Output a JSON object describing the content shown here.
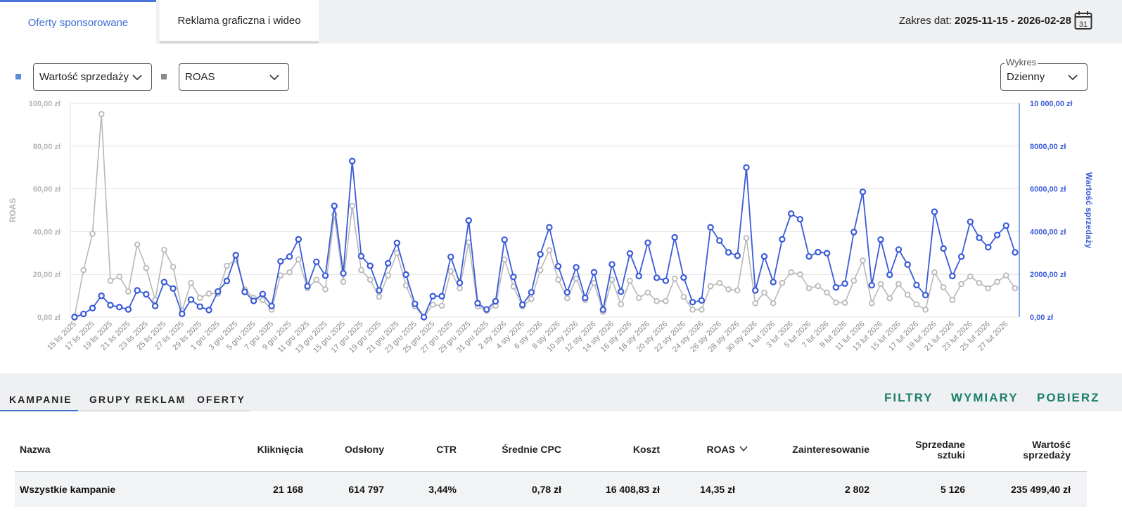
{
  "tabs": [
    {
      "label": "Oferty sponsorowane"
    },
    {
      "label": "Reklama graficzna i wideo"
    }
  ],
  "date_range": {
    "label": "Zakres dat:",
    "value": "2025-11-15 - 2026-02-28",
    "icon": "calendar-icon",
    "icon_text": "31"
  },
  "controls": {
    "primary_metric": "Wartość sprzedaży",
    "secondary_metric": "ROAS",
    "chart_mode_label": "Wykres",
    "chart_mode_value": "Dzienny",
    "primary_color": "#4a6bd6",
    "secondary_color": "#8a8a8a"
  },
  "chart_data": {
    "type": "line",
    "x": [
      "15 lis 2025",
      "16 lis 2025",
      "17 lis 2025",
      "18 lis 2025",
      "19 lis 2025",
      "20 lis 2025",
      "21 lis 2025",
      "22 lis 2025",
      "23 lis 2025",
      "24 lis 2025",
      "25 lis 2025",
      "26 lis 2025",
      "27 lis 2025",
      "28 lis 2025",
      "29 lis 2025",
      "30 lis 2025",
      "1 gru 2025",
      "2 gru 2025",
      "3 gru 2025",
      "4 gru 2025",
      "5 gru 2025",
      "6 gru 2025",
      "7 gru 2025",
      "8 gru 2025",
      "9 gru 2025",
      "10 gru 2025",
      "11 gru 2025",
      "12 gru 2025",
      "13 gru 2025",
      "14 gru 2025",
      "15 gru 2025",
      "16 gru 2025",
      "17 gru 2025",
      "18 gru 2025",
      "19 gru 2025",
      "20 gru 2025",
      "21 gru 2025",
      "22 gru 2025",
      "23 gru 2025",
      "24 gru 2025",
      "25 gru 2025",
      "26 gru 2025",
      "27 gru 2025",
      "28 gru 2025",
      "29 gru 2025",
      "30 gru 2025",
      "31 gru 2025",
      "1 sty 2026",
      "2 sty 2026",
      "3 sty 2026",
      "4 sty 2026",
      "5 sty 2026",
      "6 sty 2026",
      "7 sty 2026",
      "8 sty 2026",
      "9 sty 2026",
      "10 sty 2026",
      "11 sty 2026",
      "12 sty 2026",
      "13 sty 2026",
      "14 sty 2026",
      "15 sty 2026",
      "16 sty 2026",
      "17 sty 2026",
      "18 sty 2026",
      "19 sty 2026",
      "20 sty 2026",
      "21 sty 2026",
      "22 sty 2026",
      "23 sty 2026",
      "24 sty 2026",
      "25 sty 2026",
      "26 sty 2026",
      "27 sty 2026",
      "28 sty 2026",
      "29 sty 2026",
      "30 sty 2026",
      "31 sty 2026",
      "1 lut 2026",
      "2 lut 2026",
      "3 lut 2026",
      "4 lut 2026",
      "5 lut 2026",
      "6 lut 2026",
      "7 lut 2026",
      "8 lut 2026",
      "9 lut 2026",
      "10 lut 2026",
      "11 lut 2026",
      "12 lut 2026",
      "13 lut 2026",
      "14 lut 2026",
      "15 lut 2026",
      "16 lut 2026",
      "17 lut 2026",
      "18 lut 2026",
      "19 lut 2026",
      "20 lut 2026",
      "21 lut 2026",
      "22 lut 2026",
      "23 lut 2026",
      "24 lut 2026",
      "25 lut 2026",
      "26 lut 2026",
      "27 lut 2026",
      "28 lut 2026"
    ],
    "tick_labels": [
      "15 lis 2025",
      "17 lis 2025",
      "19 lis 2025",
      "21 lis 2025",
      "23 lis 2025",
      "25 lis 2025",
      "27 lis 2025",
      "29 lis 2025",
      "1 gru 2025",
      "3 gru 2025",
      "5 gru 2025",
      "7 gru 2025",
      "9 gru 2025",
      "11 gru 2025",
      "13 gru 2025",
      "15 gru 2025",
      "17 gru 2025",
      "19 gru 2025",
      "21 gru 2025",
      "23 gru 2025",
      "25 gru 2025",
      "27 gru 2025",
      "29 gru 2025",
      "31 gru 2025",
      "2 sty 2026",
      "4 sty 2026",
      "6 sty 2026",
      "8 sty 2026",
      "10 sty 2026",
      "12 sty 2026",
      "14 sty 2026",
      "16 sty 2026",
      "18 sty 2026",
      "20 sty 2026",
      "22 sty 2026",
      "24 sty 2026",
      "26 sty 2026",
      "28 sty 2026",
      "30 sty 2026",
      "1 lut 2026",
      "3 lut 2026",
      "5 lut 2026",
      "7 lut 2026",
      "9 lut 2026",
      "11 lut 2026",
      "13 lut 2026",
      "15 lut 2026",
      "17 lut 2026",
      "19 lut 2026",
      "21 lut 2026",
      "23 lut 2026",
      "25 lut 2026",
      "27 lut 2026"
    ],
    "y_left": {
      "label": "ROAS",
      "min": 0,
      "max": 100,
      "ticks": [
        "0,00 zł",
        "20,00 zł",
        "40,00 zł",
        "60,00 zł",
        "80,00 zł",
        "100,00 zł"
      ]
    },
    "y_right": {
      "label": "Wartość sprzedaży",
      "min": 0,
      "max": 10000,
      "ticks": [
        "0,00 zł",
        "2000,00 zł",
        "4000,00 zł",
        "6000,00 zł",
        "8000,00 zł",
        "10 000,00 zł"
      ]
    },
    "grid": true,
    "series": [
      {
        "name": "Wartość sprzedaży",
        "axis": "right",
        "color": "#3a5bd9",
        "values": [
          0,
          150,
          420,
          1000,
          560,
          470,
          360,
          1250,
          1070,
          520,
          1640,
          1340,
          150,
          820,
          490,
          330,
          1200,
          1690,
          2900,
          1180,
          760,
          1080,
          520,
          2610,
          2830,
          3640,
          1450,
          2590,
          1940,
          5200,
          2050,
          7300,
          2850,
          2400,
          1250,
          2520,
          3470,
          1990,
          620,
          0,
          980,
          980,
          2820,
          1600,
          4520,
          650,
          360,
          740,
          3620,
          1880,
          580,
          1160,
          2940,
          4200,
          2380,
          1160,
          2330,
          900,
          2100,
          350,
          2470,
          1190,
          2980,
          1920,
          3480,
          1840,
          1700,
          3730,
          1850,
          700,
          780,
          4200,
          3580,
          3030,
          2870,
          7000,
          1250,
          2840,
          1640,
          3640,
          4840,
          4580,
          2840,
          3040,
          2990,
          1390,
          1570,
          3980,
          5860,
          1490,
          3630,
          1980,
          3160,
          2460,
          1500,
          1030,
          4930,
          3210,
          1920,
          2830,
          4460,
          3710,
          3270,
          3840,
          4280,
          3030
        ]
      },
      {
        "name": "ROAS",
        "axis": "left",
        "color": "#b8b8b8",
        "values": [
          0.4,
          22,
          39,
          95,
          17,
          19,
          12,
          34,
          23,
          8,
          31.5,
          23.5,
          3,
          16,
          9,
          11,
          11,
          24,
          27,
          13,
          9,
          8,
          3.5,
          19.5,
          21,
          27,
          13.5,
          17.5,
          13,
          48,
          16.5,
          52,
          22,
          17.5,
          9.5,
          19.5,
          30,
          14.8,
          5,
          0,
          5.8,
          5.3,
          21.5,
          13.5,
          35,
          5,
          3,
          5.3,
          27,
          14.3,
          5,
          8.5,
          22,
          31.3,
          17.5,
          8.8,
          18,
          8,
          16,
          2.5,
          17.5,
          6,
          17,
          9,
          11.5,
          7.5,
          7.5,
          18,
          9.5,
          3.5,
          3.5,
          14.5,
          16,
          13,
          12.5,
          37,
          6.5,
          11.5,
          6.5,
          16,
          21,
          20,
          13.5,
          14.5,
          11.5,
          6.8,
          6.7,
          17,
          26.5,
          6.5,
          15.5,
          8.8,
          15.5,
          10.5,
          6,
          3.5,
          21,
          14,
          8,
          15.5,
          19,
          16,
          13.5,
          16.5,
          19.5,
          13.5
        ]
      }
    ]
  },
  "bottom_tabs": [
    {
      "label": "KAMPANIE"
    },
    {
      "label": "GRUPY REKLAM"
    },
    {
      "label": "OFERTY"
    }
  ],
  "actions": {
    "filters": "FILTRY",
    "dimensions": "WYMIARY",
    "download": "POBIERZ"
  },
  "table": {
    "headers": {
      "name": "Nazwa",
      "clicks": "Kliknięcia",
      "views": "Odsłony",
      "ctr": "CTR",
      "cpc": "Średnie CPC",
      "cost": "Koszt",
      "roas": "ROAS",
      "interest": "Zainteresowanie",
      "sold_line1": "Sprzedane",
      "sold_line2": "sztuki",
      "value_line1": "Wartość",
      "value_line2": "sprzedaży"
    },
    "total_row": {
      "name": "Wszystkie kampanie",
      "clicks": "21 168",
      "views": "614 797",
      "ctr": "3,44%",
      "cpc": "0,78 zł",
      "cost": "16 408,83 zł",
      "roas": "14,35 zł",
      "interest": "2 802",
      "sold": "5 126",
      "value": "235 499,40 zł"
    }
  }
}
